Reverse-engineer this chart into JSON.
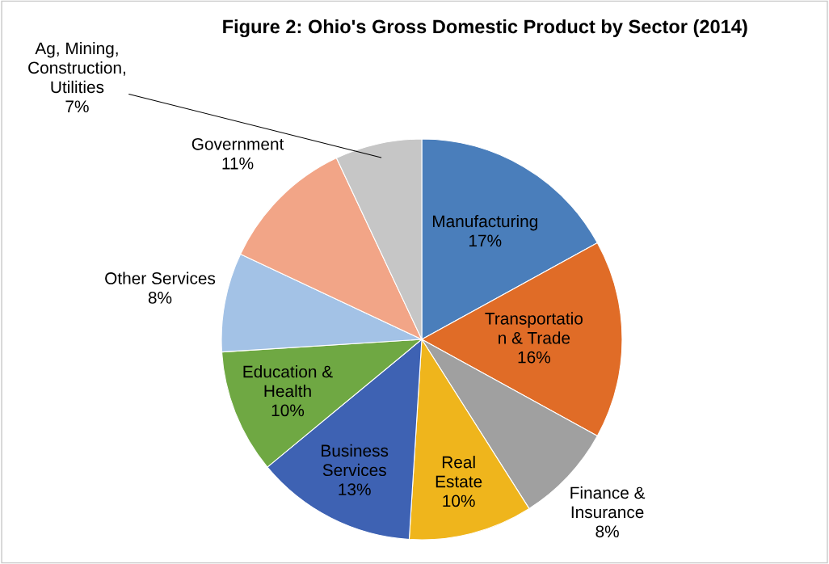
{
  "chart_data": {
    "type": "pie",
    "title": "Figure 2: Ohio's Gross Domestic Product by Sector (2014)",
    "categories": [
      "Manufacturing",
      "Transportatio\nn & Trade",
      "Finance &\nInsurance",
      "Real\nEstate",
      "Business\nServices",
      "Education &\nHealth",
      "Other Services",
      "Government",
      "Ag, Mining,\nConstruction,\nUtilities"
    ],
    "values": [
      17,
      16,
      8,
      10,
      13,
      10,
      8,
      11,
      7
    ],
    "value_labels": [
      "17%",
      "16%",
      "8%",
      "10%",
      "13%",
      "10%",
      "8%",
      "11%",
      "7%"
    ],
    "colors": [
      "#4a7ebb",
      "#e06c27",
      "#a0a0a0",
      "#efb51c",
      "#3e62b3",
      "#6fa843",
      "#a3c2e6",
      "#f2a587",
      "#c6c6c6"
    ]
  }
}
